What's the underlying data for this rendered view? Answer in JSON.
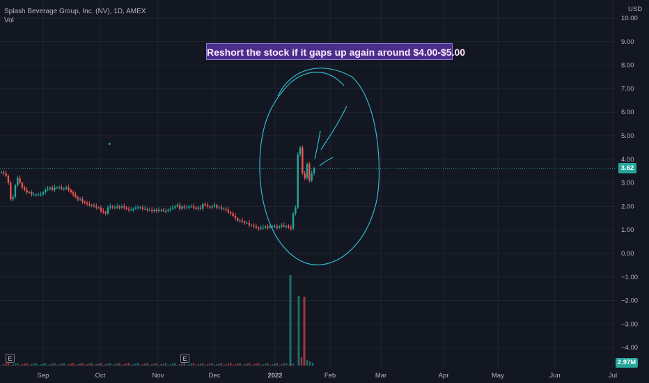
{
  "header": {
    "symbol_line": "Splash Beverage Group, Inc. (NV), 1D, AMEX",
    "volume_label": "Vol"
  },
  "annotation": {
    "text": "Reshort the  stock if it gaps up again around $4.00-$5.00"
  },
  "price_axis": {
    "unit": "USD",
    "ticks": [
      "10.00",
      "9.00",
      "8.00",
      "7.00",
      "6.00",
      "5.00",
      "4.00",
      "3.00",
      "2.00",
      "1.00",
      "0.00",
      "−1.00",
      "−2.00",
      "−3.00",
      "−4.00"
    ],
    "current_price_label": "3.62",
    "volume_label": "2.97M"
  },
  "time_axis": {
    "labels": [
      "Sep",
      "Oct",
      "Nov",
      "Dec",
      "2022",
      "Feb",
      "Mar",
      "Apr",
      "May",
      "Jun",
      "Jul"
    ]
  },
  "earnings_marker": "E",
  "colors": {
    "background": "#131722",
    "up": "#26a69a",
    "down": "#ef5350",
    "drawing": "#35b8c9",
    "annotation_bg": "#4a2f8a"
  },
  "chart_data": {
    "type": "candlestick",
    "symbol": "Splash Beverage Group, Inc. (NV)",
    "interval": "1D",
    "exchange": "AMEX",
    "ylim": [
      -4.5,
      10.5
    ],
    "last_price": 3.62,
    "last_volume": "2.97M",
    "price_series": {
      "description": "daily closes, Aug 2021 - Jan 2022",
      "closes": [
        3.45,
        3.4,
        3.3,
        3.0,
        2.3,
        2.4,
        2.9,
        3.2,
        3.0,
        2.8,
        2.7,
        2.6,
        2.6,
        2.5,
        2.5,
        2.5,
        2.5,
        2.5,
        2.6,
        2.7,
        2.75,
        2.8,
        2.7,
        2.8,
        2.8,
        2.8,
        2.75,
        2.75,
        2.8,
        2.7,
        2.6,
        2.5,
        2.4,
        2.3,
        2.3,
        2.2,
        2.15,
        2.1,
        2.05,
        2.05,
        2.0,
        1.95,
        1.95,
        1.8,
        1.75,
        1.7,
        1.95,
        2.0,
        1.95,
        1.95,
        2.0,
        1.95,
        2.0,
        1.95,
        1.9,
        1.85,
        1.85,
        1.9,
        1.95,
        1.95,
        1.95,
        1.9,
        1.9,
        1.85,
        1.85,
        1.8,
        1.85,
        1.8,
        1.85,
        1.85,
        1.8,
        1.8,
        1.85,
        1.9,
        1.95,
        2.0,
        2.05,
        1.9,
        2.0,
        1.95,
        1.95,
        2.0,
        2.0,
        1.95,
        1.9,
        1.95,
        1.9,
        2.1,
        2.05,
        2.0,
        1.95,
        2.0,
        2.05,
        1.95,
        1.95,
        1.9,
        1.9,
        1.85,
        1.75,
        1.7,
        1.6,
        1.5,
        1.4,
        1.4,
        1.35,
        1.3,
        1.3,
        1.2,
        1.2,
        1.15,
        1.1,
        1.05,
        1.1,
        1.1,
        1.15,
        1.1,
        1.15,
        1.15,
        1.15,
        1.1,
        1.15,
        1.2,
        1.15,
        1.15,
        1.1,
        1.05,
        1.7,
        1.95,
        4.2,
        4.5,
        3.4,
        3.2,
        3.8,
        3.1,
        3.4,
        3.62
      ]
    },
    "volume_peaks": [
      {
        "label": "Jan 2022 spike 1",
        "relative": 1.0
      },
      {
        "label": "Jan 2022 spike 2",
        "relative": 0.77
      },
      {
        "label": "Jan 2022 spike 3",
        "relative": 0.76
      }
    ],
    "drawings": [
      "hand-drawn ellipse around January 2022 spike",
      "hand-drawn arrow strokes"
    ],
    "grid": true
  }
}
